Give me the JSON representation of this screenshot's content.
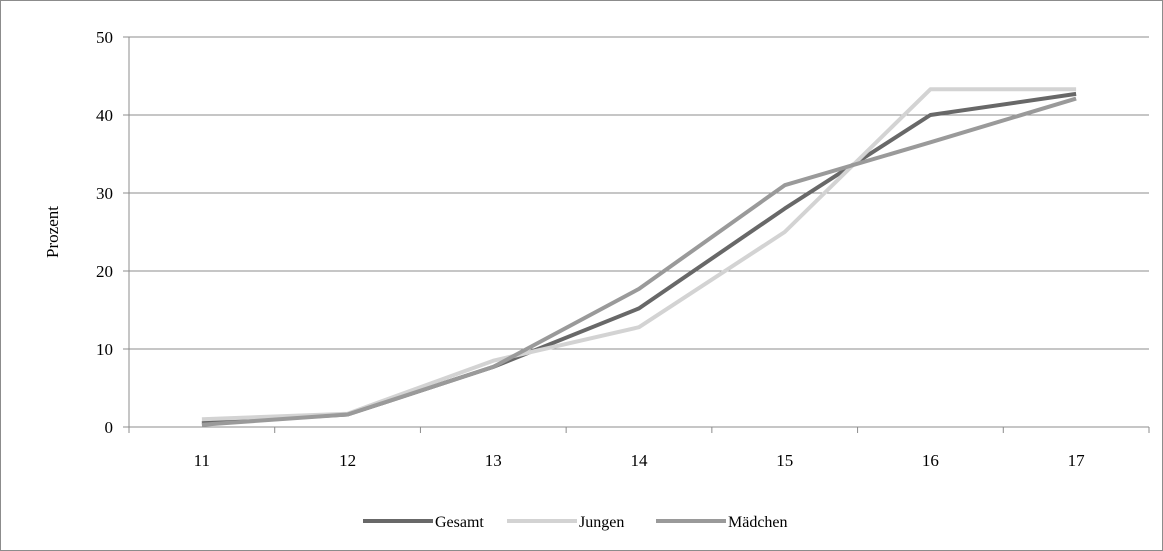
{
  "chart_data": {
    "type": "line",
    "title": "",
    "xlabel": "",
    "ylabel": "Prozent",
    "categories": [
      "11",
      "12",
      "13",
      "14",
      "15",
      "16",
      "17"
    ],
    "ylim": [
      0,
      50
    ],
    "yticks": [
      0,
      10,
      20,
      30,
      40,
      50
    ],
    "grid": true,
    "legend_position": "bottom",
    "series": [
      {
        "name": "Gesamt",
        "color": "#686868",
        "values": [
          0.5,
          1.6,
          7.7,
          15.2,
          28.0,
          40.0,
          42.7
        ]
      },
      {
        "name": "Jungen",
        "color": "#d3d3d3",
        "values": [
          1.0,
          1.7,
          8.5,
          12.8,
          25.0,
          43.3,
          43.3
        ]
      },
      {
        "name": "Mädchen",
        "color": "#9a9a9a",
        "values": [
          0.3,
          1.6,
          7.7,
          17.7,
          31.0,
          36.5,
          42.1
        ]
      }
    ]
  }
}
